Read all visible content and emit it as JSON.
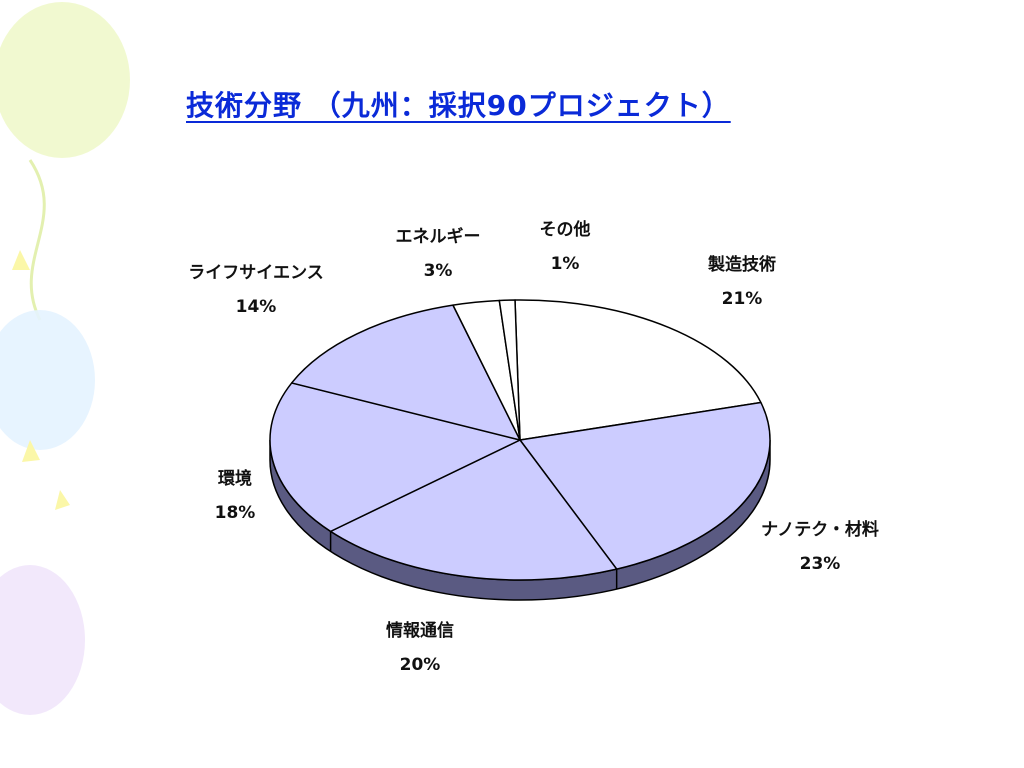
{
  "slide": {
    "title": "技術分野 （九州：採択90プロジェクト）"
  },
  "chart_data": {
    "type": "pie",
    "title": "",
    "slices": [
      {
        "label": "製造技術",
        "pct_label": "21%",
        "value": 21,
        "color": "#ffffff"
      },
      {
        "label": "ナノテク・材料",
        "pct_label": "23%",
        "value": 23,
        "color": "#ccccff"
      },
      {
        "label": "情報通信",
        "pct_label": "20%",
        "value": 20,
        "color": "#ccccff"
      },
      {
        "label": "環境",
        "pct_label": "18%",
        "value": 18,
        "color": "#ccccff"
      },
      {
        "label": "ライフサイエンス",
        "pct_label": "14%",
        "value": 14,
        "color": "#ccccff"
      },
      {
        "label": "エネルギー",
        "pct_label": "3%",
        "value": 3,
        "color": "#ffffff"
      },
      {
        "label": "その他",
        "pct_label": "1%",
        "value": 1,
        "color": "#ffffff"
      }
    ],
    "side_color": "#5a5a82",
    "legend": "none"
  }
}
